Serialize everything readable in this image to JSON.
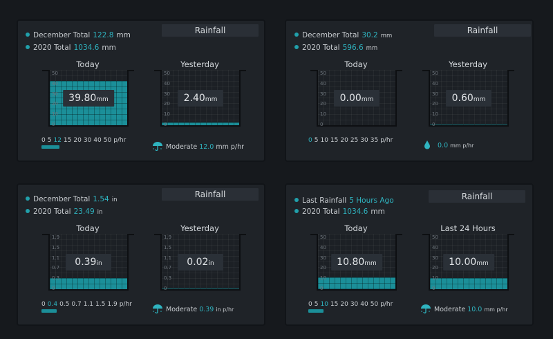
{
  "colors": {
    "accent": "#1b8f99",
    "highlight": "#2fb4c0",
    "background": "#16191d",
    "card": "#1f2328"
  },
  "panels": [
    {
      "title": "Rainfall",
      "stats": [
        {
          "label": "December Total",
          "value": "122.8",
          "unit": "mm"
        },
        {
          "label": "2020 Total",
          "value": "1034.6",
          "unit": "mm"
        }
      ],
      "today": {
        "label": "Today",
        "value": "39.80",
        "unit": "mm",
        "ticks": [
          "50",
          "40",
          "30",
          "20",
          "10",
          "0"
        ],
        "fill_fraction": 0.796
      },
      "yesterday": {
        "label": "Yesterday",
        "value": "2.40",
        "unit": "mm",
        "ticks": [
          "50",
          "40",
          "30",
          "20",
          "10",
          "0"
        ],
        "fill_fraction": 0.048
      },
      "scale": [
        "0",
        "5",
        "12",
        "15",
        "20",
        "30",
        "40",
        "50",
        "p/hr"
      ],
      "scale_highlight": 2,
      "rate_bar_fraction": 0.24,
      "rate": {
        "icon": "umbrella-icon",
        "label": "Moderate",
        "value": "12.0",
        "unit": "mm p/hr"
      }
    },
    {
      "title": "Rainfall",
      "stats": [
        {
          "label": "December Total",
          "value": "30.2",
          "unit": "mm"
        },
        {
          "label": "2020 Total",
          "value": "596.6",
          "unit": "mm"
        }
      ],
      "today": {
        "label": "Today",
        "value": "0.00",
        "unit": "mm",
        "ticks": [
          "50",
          "40",
          "30",
          "20",
          "10",
          "0"
        ],
        "fill_fraction": 0
      },
      "yesterday": {
        "label": "Yesterday",
        "value": "0.60",
        "unit": "mm",
        "ticks": [
          "50",
          "40",
          "30",
          "20",
          "10",
          "0"
        ],
        "fill_fraction": 0.012
      },
      "scale": [
        "0",
        "5",
        "10",
        "15",
        "20",
        "25",
        "30",
        "35",
        "p/hr"
      ],
      "scale_highlight": 0,
      "rate_bar_fraction": 0,
      "rate": {
        "icon": "raindrop-icon",
        "label": "",
        "value": "0.0",
        "unit": "mm p/hr"
      }
    },
    {
      "title": "Rainfall",
      "stats": [
        {
          "label": "December Total",
          "value": "1.54",
          "unit": "in"
        },
        {
          "label": "2020 Total",
          "value": "23.49",
          "unit": "in"
        }
      ],
      "today": {
        "label": "Today",
        "value": "0.39",
        "unit": "in",
        "ticks": [
          "1.9",
          "1.5",
          "1.1",
          "0.7",
          "0.3",
          "0"
        ],
        "fill_fraction": 0.205
      },
      "yesterday": {
        "label": "Yesterday",
        "value": "0.02",
        "unit": "in",
        "ticks": [
          "1.9",
          "1.5",
          "1.1",
          "0.7",
          "0.3",
          "0"
        ],
        "fill_fraction": 0.01
      },
      "scale": [
        "0",
        "0.4",
        "0.5",
        "0.7",
        "1.1",
        "1.5",
        "1.9",
        "p/hr"
      ],
      "scale_highlight": 1,
      "rate_bar_fraction": 0.2,
      "rate": {
        "icon": "umbrella-icon",
        "label": "Moderate",
        "value": "0.39",
        "unit": "in p/hr"
      }
    },
    {
      "title": "Rainfall",
      "stats": [
        {
          "label": "Last Rainfall",
          "value": "5 Hours Ago",
          "unit": ""
        },
        {
          "label": "2020 Total",
          "value": "1034.6",
          "unit": "mm"
        }
      ],
      "today": {
        "label": "Today",
        "value": "10.80",
        "unit": "mm",
        "ticks": [
          "50",
          "40",
          "30",
          "20",
          "10",
          "0"
        ],
        "fill_fraction": 0.216
      },
      "yesterday": {
        "label": "Last 24 Hours",
        "value": "10.00",
        "unit": "mm",
        "ticks": [
          "50",
          "40",
          "30",
          "20",
          "10",
          "0"
        ],
        "fill_fraction": 0.2
      },
      "scale": [
        "0",
        "5",
        "10",
        "15",
        "20",
        "30",
        "40",
        "50",
        "p/hr"
      ],
      "scale_highlight": 2,
      "rate_bar_fraction": 0.2,
      "rate": {
        "icon": "umbrella-icon",
        "label": "Moderate",
        "value": "10.0",
        "unit": "mm p/hr"
      }
    }
  ]
}
